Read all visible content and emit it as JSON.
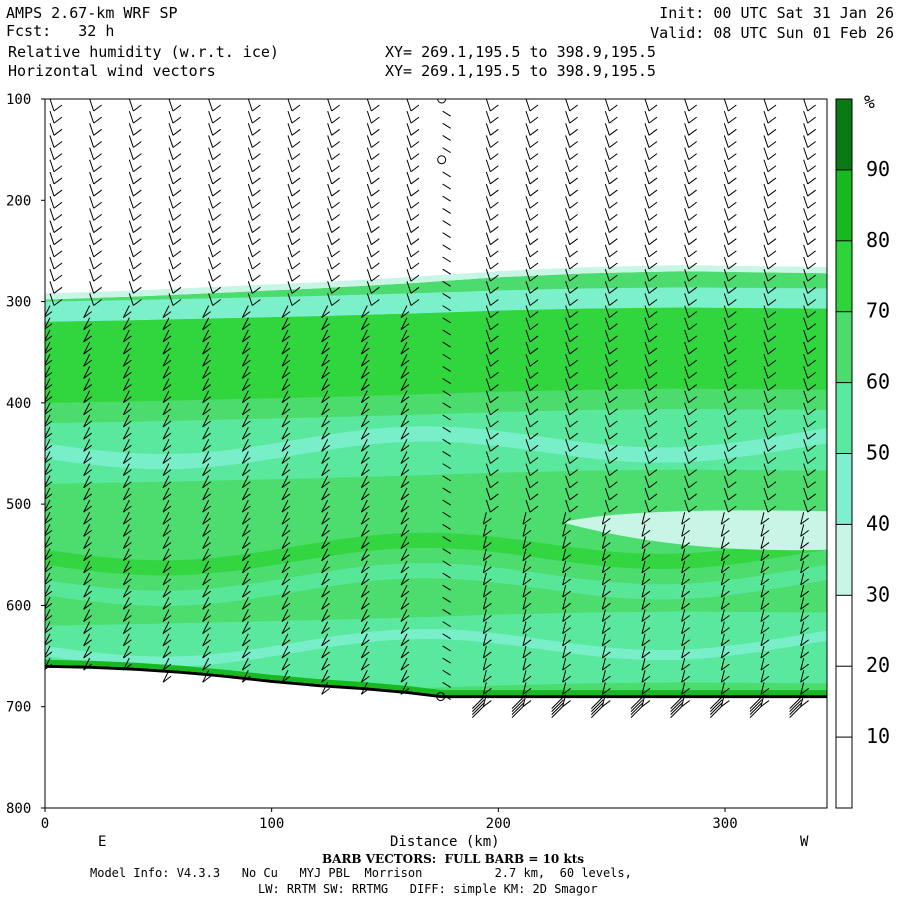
{
  "header": {
    "model_title": "AMPS 2.67-km WRF SP",
    "forecast": "Fcst:   32 h",
    "field_line1": "Relative humidity (w.r.t. ice)",
    "field_line2": "Horizontal wind vectors",
    "xy_line1": "XY= 269.1,195.5 to 398.9,195.5",
    "xy_line2": "XY= 269.1,195.5 to 398.9,195.5",
    "init": "Init: 00 UTC Sat 31 Jan 26",
    "valid": "Valid: 08 UTC Sun 01 Feb 26"
  },
  "footer": {
    "xlabel": "Distance (km)",
    "left_end": "E",
    "right_end": "W",
    "barb_note": "BARB VECTORS:  FULL BARB = 10 kts",
    "model_info_1": "Model Info: V4.3.3   No Cu   MYJ PBL  Morrison          2.7 km,  60 levels,",
    "model_info_2": "LW: RRTM SW: RRTMG   DIFF: simple KM: 2D Smagor"
  },
  "colorbar": {
    "unit": "%",
    "levels": [
      10,
      20,
      30,
      40,
      50,
      60,
      70,
      80,
      90
    ],
    "colors": [
      "#ffffff",
      "#ffffff",
      "#ffffff",
      "#c8f5e6",
      "#7ef0d0",
      "#5be8a0",
      "#4cdc6e",
      "#2fd43a",
      "#18b820",
      "#0a7a14"
    ]
  },
  "chart_data": {
    "type": "heatmap",
    "title": "Relative humidity (w.r.t. ice)",
    "xlabel": "Distance (km)",
    "ylabel": "",
    "x_ticks": [
      0,
      100,
      200,
      300
    ],
    "y_ticks": [
      100,
      200,
      300,
      400,
      500,
      600,
      700,
      800
    ],
    "xlim": [
      0,
      345
    ],
    "ylim": [
      800,
      100
    ],
    "terrain_pressure": {
      "x": [
        0,
        20,
        40,
        60,
        80,
        100,
        120,
        140,
        160,
        175,
        190,
        220,
        260,
        300,
        345
      ],
      "p": [
        660,
        661,
        663,
        666,
        670,
        675,
        679,
        682,
        686,
        690,
        690,
        690,
        690,
        690,
        690
      ]
    },
    "moist_top_pressure": {
      "x": [
        0,
        40,
        80,
        120,
        160,
        200,
        240,
        280,
        345
      ],
      "p": [
        298,
        295,
        291,
        287,
        282,
        276,
        272,
        270,
        272
      ]
    },
    "layers": [
      {
        "p_top": 300,
        "p_bot": 320,
        "rh_band": "40-50"
      },
      {
        "p_top": 320,
        "p_bot": 400,
        "rh_band": "70-80"
      },
      {
        "p_top": 420,
        "p_bot": 480,
        "rh_band": "50-60"
      },
      {
        "p_top": 480,
        "p_bot": 620,
        "rh_band": "60-70"
      },
      {
        "p_top": 620,
        "p_bot": 690,
        "rh_band": "50-60"
      }
    ],
    "dry_pocket": {
      "x_range": [
        230,
        345
      ],
      "p_range": [
        505,
        545
      ],
      "rh_band": "30-40"
    },
    "barb_columns_km": [
      0,
      17.5,
      35,
      52.5,
      70,
      87.5,
      105,
      122.5,
      140,
      157.5,
      175,
      192.5,
      210,
      227.5,
      245,
      262.5,
      280,
      297.5,
      315,
      332.5
    ]
  }
}
